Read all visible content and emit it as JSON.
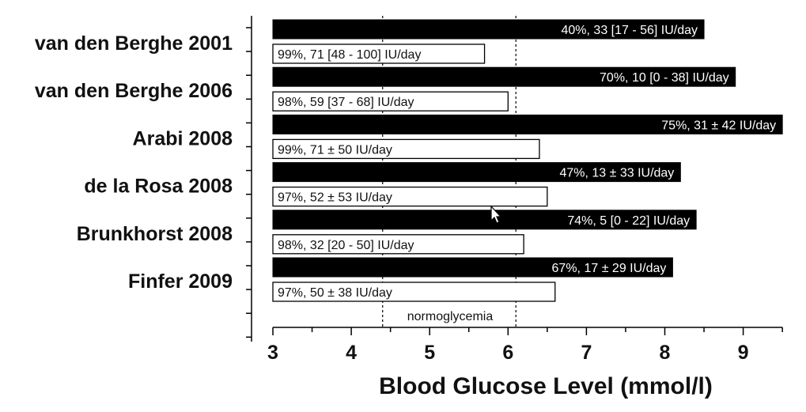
{
  "chart_data": {
    "type": "bar",
    "orientation": "horizontal",
    "xlabel": "Blood Glucose Level (mmol/l)",
    "xlim": [
      3,
      9.5
    ],
    "xticks": [
      3,
      4,
      5,
      6,
      7,
      8,
      9
    ],
    "normoglycemia": {
      "label": "normoglycemia",
      "range": [
        4.4,
        6.1
      ]
    },
    "colors": {
      "intensive": "#000000",
      "conventional": "#ffffff"
    },
    "categories": [
      "van den Berghe 2001",
      "van den Berghe 2006",
      "Arabi 2008",
      "de la Rosa 2008",
      "Brunkhorst 2008",
      "Finfer 2009"
    ],
    "series": [
      {
        "values": [
          8.5,
          8.9,
          9.5,
          8.2,
          8.4,
          8.1
        ],
        "labels": [
          "40%, 33 [17 - 56] IU/day",
          "70%, 10 [0 - 38] IU/day",
          "75%, 31 ± 42 IU/day",
          "47%, 13 ± 33 IU/day",
          "74%, 5 [0 - 22] IU/day",
          "67%, 17 ± 29 IU/day"
        ]
      },
      {
        "values": [
          5.7,
          6.0,
          6.4,
          6.5,
          6.2,
          6.6
        ],
        "labels": [
          "99%, 71 [48 - 100] IU/day",
          "98%, 59 [37 - 68] IU/day",
          "99%, 71 ± 50 IU/day",
          "97%, 52 ± 53 IU/day",
          "98%, 32 [20 - 50] IU/day",
          "97%, 50 ± 38 IU/day"
        ]
      }
    ]
  }
}
